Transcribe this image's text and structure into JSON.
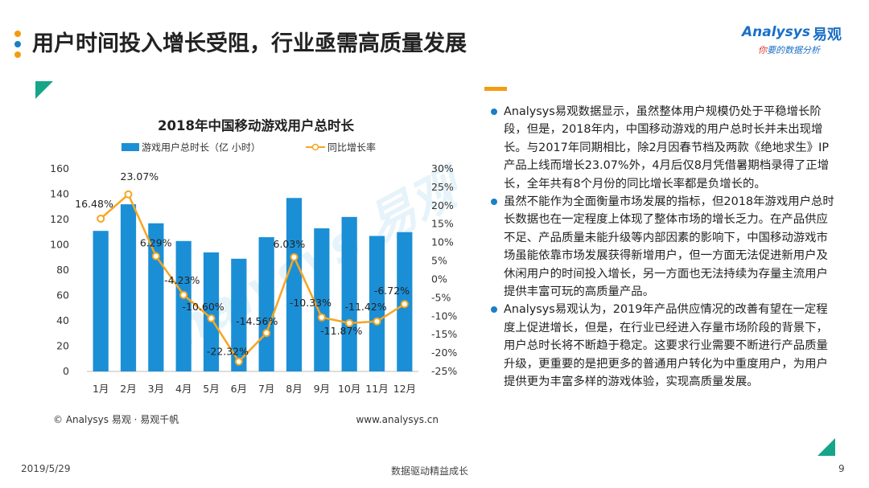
{
  "header": {
    "title": "用户时间投入增长受阻，行业亟需高质量发展",
    "logo_en": "Analysys",
    "logo_cn": "易观",
    "logo_tag_red": "你",
    "logo_tag_rest": "要的数据分析"
  },
  "colors": {
    "bar": "#1b8fd6",
    "line": "#f5a623",
    "accent_green": "#17a589",
    "accent_orange": "#f39c12",
    "bullet_blue": "#1a7fc6",
    "dot_orange": "#f39c12",
    "dot_blue": "#1a7fc6"
  },
  "chart_data": {
    "type": "bar",
    "title": "2018年中国移动游戏用户总时长",
    "categories": [
      "1月",
      "2月",
      "3月",
      "4月",
      "5月",
      "6月",
      "7月",
      "8月",
      "9月",
      "10月",
      "11月",
      "12月"
    ],
    "series": [
      {
        "name": "游戏用户总时长（亿 小时）",
        "type": "bar",
        "axis": "left",
        "values": [
          111,
          132,
          117,
          103,
          94,
          89,
          106,
          137,
          113,
          122,
          107,
          110
        ]
      },
      {
        "name": "同比增长率",
        "type": "line",
        "axis": "right",
        "values": [
          16.48,
          23.07,
          6.29,
          -4.23,
          -10.6,
          -22.32,
          -14.56,
          6.03,
          -10.33,
          -11.87,
          -11.42,
          -6.72
        ],
        "labels": [
          "16.48%",
          "23.07%",
          "6.29%",
          "-4.23%",
          "-10.60%",
          "-22.32%",
          "-14.56%",
          "6.03%",
          "-10.33%",
          "-11.87%",
          "-11.42%",
          "-6.72%"
        ]
      }
    ],
    "ylim": [
      0,
      160
    ],
    "y_ticks": [
      0,
      20,
      40,
      60,
      80,
      100,
      120,
      140,
      160
    ],
    "y2lim": [
      -25,
      30
    ],
    "y2_ticks": [
      "30%",
      "25%",
      "20%",
      "15%",
      "10%",
      "5%",
      "0%",
      "-5%",
      "-10%",
      "-15%",
      "-20%",
      "-25%"
    ],
    "grid": false,
    "legend_position": "top",
    "source_left": "© Analysys 易观 · 易观千帆",
    "source_right": "www.analysys.cn"
  },
  "bullets": [
    "Analysys易观数据显示，虽然整体用户规模仍处于平稳增长阶段，但是，2018年内，中国移动游戏的用户总时长并未出现增长。与2017年同期相比，除2月因春节档及两款《绝地求生》IP产品上线而增长23.07%外，4月后仅8月凭借暑期档录得了正增长，全年共有8个月份的同比增长率都是负增长的。",
    "虽然不能作为全面衡量市场发展的指标，但2018年游戏用户总时长数据也在一定程度上体现了整体市场的增长乏力。在产品供应不足、产品质量未能升级等内部因素的影响下，中国移动游戏市场虽能依靠市场发展获得新增用户，但一方面无法促进新用户及休闲用户的时间投入增长，另一方面也无法持续为存量主流用户提供丰富可玩的高质量产品。",
    "Analysys易观认为，2019年产品供应情况的改善有望在一定程度上促进增长，但是，在行业已经进入存量市场阶段的背景下，用户总时长将不断趋于稳定。这要求行业需要不断进行产品质量升级，更重要的是把更多的普通用户转化为中重度用户，为用户提供更为丰富多样的游戏体验，实现高质量发展。"
  ],
  "footer": {
    "date": "2019/5/29",
    "center": "数据驱动精益成长",
    "page": "9"
  }
}
